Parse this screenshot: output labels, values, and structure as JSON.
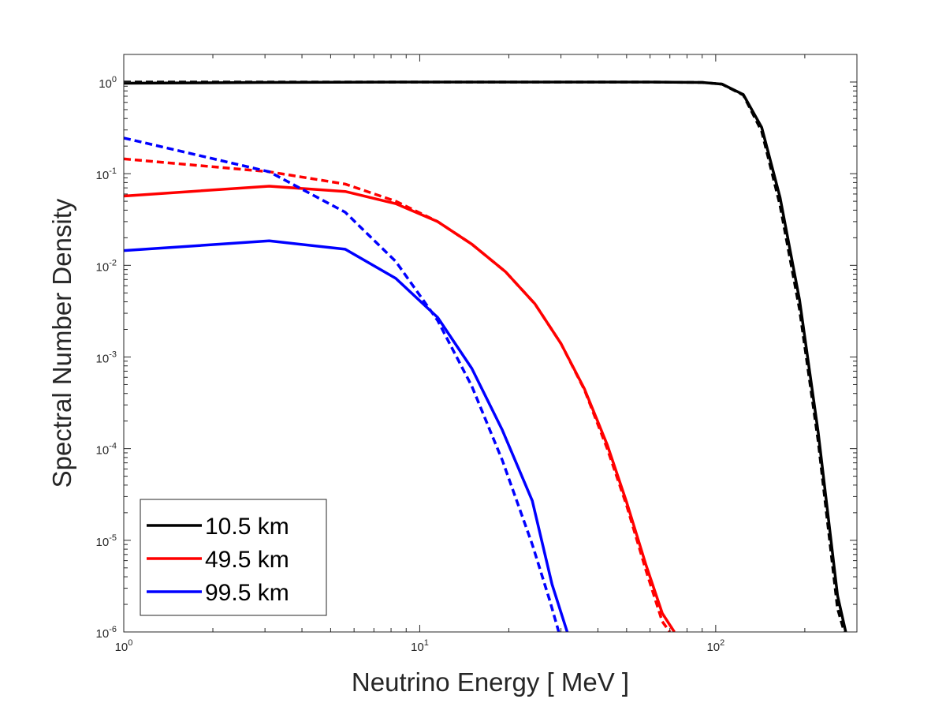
{
  "chart_data": {
    "type": "line",
    "title": "",
    "xlabel": "Neutrino Energy [ MeV ]",
    "ylabel": "Spectral Number Density",
    "xscale": "log",
    "yscale": "log",
    "xlim": [
      1,
      300
    ],
    "ylim": [
      1e-06,
      2
    ],
    "grid": false,
    "legend_position": "bottom-left",
    "x_ticks": [
      {
        "value": 1,
        "base": "10",
        "exp": "0"
      },
      {
        "value": 10,
        "base": "10",
        "exp": "1"
      },
      {
        "value": 100,
        "base": "10",
        "exp": "2"
      }
    ],
    "y_ticks": [
      {
        "value": 1,
        "base": "10",
        "exp": "0"
      },
      {
        "value": 0.1,
        "base": "10",
        "exp": "-1"
      },
      {
        "value": 0.01,
        "base": "10",
        "exp": "-2"
      },
      {
        "value": 0.001,
        "base": "10",
        "exp": "-3"
      },
      {
        "value": 0.0001,
        "base": "10",
        "exp": "-4"
      },
      {
        "value": 1e-05,
        "base": "10",
        "exp": "-5"
      },
      {
        "value": 1e-06,
        "base": "10",
        "exp": "-6"
      }
    ],
    "series": [
      {
        "name": "10.5 km",
        "color": "#000000",
        "style": "solid",
        "x": [
          1,
          3,
          10,
          30,
          60,
          90,
          105,
          124,
          143,
          165,
          192,
          222,
          258,
          275
        ],
        "y": [
          0.97,
          0.99,
          1.0,
          1.0,
          1.0,
          0.99,
          0.95,
          0.73,
          0.32,
          0.055,
          0.0042,
          0.00015,
          2.5e-06,
          1e-06
        ]
      },
      {
        "name": "",
        "color": "#000000",
        "style": "dashed",
        "x": [
          1,
          3,
          10,
          30,
          60,
          90,
          105,
          124,
          143,
          165,
          192,
          222,
          258,
          272
        ],
        "y": [
          1.0,
          1.0,
          1.0,
          1.0,
          1.0,
          0.99,
          0.95,
          0.72,
          0.29,
          0.045,
          0.0033,
          0.00012,
          1.8e-06,
          1e-06
        ]
      },
      {
        "name": "49.5 km",
        "color": "#ff0000",
        "style": "solid",
        "x": [
          1,
          3.1,
          5.6,
          8.3,
          11.5,
          15,
          19.5,
          24.5,
          30,
          36,
          43,
          50,
          58,
          66,
          72.5
        ],
        "y": [
          0.057,
          0.073,
          0.064,
          0.047,
          0.03,
          0.017,
          0.0085,
          0.0038,
          0.0014,
          0.00045,
          0.00011,
          2.6e-05,
          5.5e-06,
          1.6e-06,
          1e-06
        ]
      },
      {
        "name": "",
        "color": "#ff0000",
        "style": "dashed",
        "x": [
          1,
          3.1,
          5.6,
          8.3,
          11.5,
          15,
          19.5,
          24.5,
          30,
          36,
          43,
          50,
          58,
          66,
          70
        ],
        "y": [
          0.145,
          0.105,
          0.077,
          0.05,
          0.03,
          0.017,
          0.0085,
          0.0038,
          0.0014,
          0.00044,
          0.0001,
          2.4e-05,
          4.8e-06,
          1.3e-06,
          1e-06
        ]
      },
      {
        "name": "99.5 km",
        "color": "#0000ff",
        "style": "solid",
        "x": [
          1,
          3.1,
          5.6,
          8.3,
          11.5,
          15,
          19,
          24,
          28,
          31.5
        ],
        "y": [
          0.0145,
          0.0185,
          0.015,
          0.0072,
          0.0027,
          0.00075,
          0.00016,
          2.7e-05,
          3.3e-06,
          1e-06
        ]
      },
      {
        "name": "",
        "color": "#0000ff",
        "style": "dashed",
        "x": [
          1,
          3.1,
          5.6,
          8.3,
          11.5,
          15,
          19,
          24,
          27.5,
          29.5
        ],
        "y": [
          0.245,
          0.105,
          0.038,
          0.011,
          0.0025,
          0.00048,
          7.5e-05,
          9e-06,
          2.2e-06,
          1e-06
        ]
      }
    ]
  }
}
